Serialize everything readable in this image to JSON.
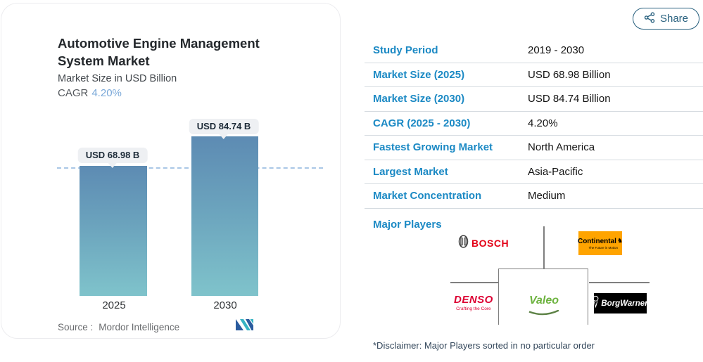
{
  "share": {
    "label": "Share"
  },
  "chart_card": {
    "title": "Automotive Engine Management System Market",
    "subtitle": "Market Size in USD Billion",
    "cagr_label": "CAGR",
    "cagr_value": "4.20%",
    "source_label": "Source :",
    "source_value": "Mordor Intelligence"
  },
  "chart_data": {
    "type": "bar",
    "title": "Automotive Engine Management System Market",
    "ylabel": "Market Size in USD Billion",
    "categories": [
      "2025",
      "2030"
    ],
    "values": [
      68.98,
      84.74
    ],
    "bar_labels": [
      "USD 68.98 B",
      "USD 84.74 B"
    ],
    "cagr": "4.20%",
    "ylim": [
      0,
      84.74
    ],
    "grid": false,
    "reference_line_value": 68.98,
    "reference_line_style": "dashed",
    "legend": "none",
    "bar_color_top": "#5d8bb3",
    "bar_color_bottom": "#7fc3cb",
    "reference_line_color": "#a9c7e6"
  },
  "table": {
    "rows": [
      {
        "label": "Study Period",
        "value": "2019 - 2030"
      },
      {
        "label": "Market Size (2025)",
        "value": "USD 68.98 Billion"
      },
      {
        "label": "Market Size (2030)",
        "value": "USD 84.74 Billion"
      },
      {
        "label": "CAGR (2025 - 2030)",
        "value": "4.20%"
      },
      {
        "label": "Fastest Growing Market",
        "value": "North America"
      },
      {
        "label": "Largest Market",
        "value": "Asia-Pacific"
      },
      {
        "label": "Market Concentration",
        "value": "Medium"
      }
    ]
  },
  "players": {
    "heading": "Major Players",
    "items": [
      {
        "name": "BOSCH"
      },
      {
        "name": "Continental",
        "tagline": "The Future in Motion"
      },
      {
        "name": "DENSO",
        "tagline": "Crafting the Core"
      },
      {
        "name": "Valeo"
      },
      {
        "name": "BorgWarner"
      }
    ],
    "disclaimer": "*Disclaimer: Major Players sorted in no particular order"
  },
  "colors": {
    "accent_blue": "#1b89c4",
    "cagr_blue": "#7aa8d8",
    "share_teal": "#28607e",
    "bosch_red": "#e30016",
    "continental_orange": "#ffa400",
    "denso_red": "#dc0032",
    "valeo_green": "#6db33f",
    "borgwarner_black": "#000000"
  }
}
